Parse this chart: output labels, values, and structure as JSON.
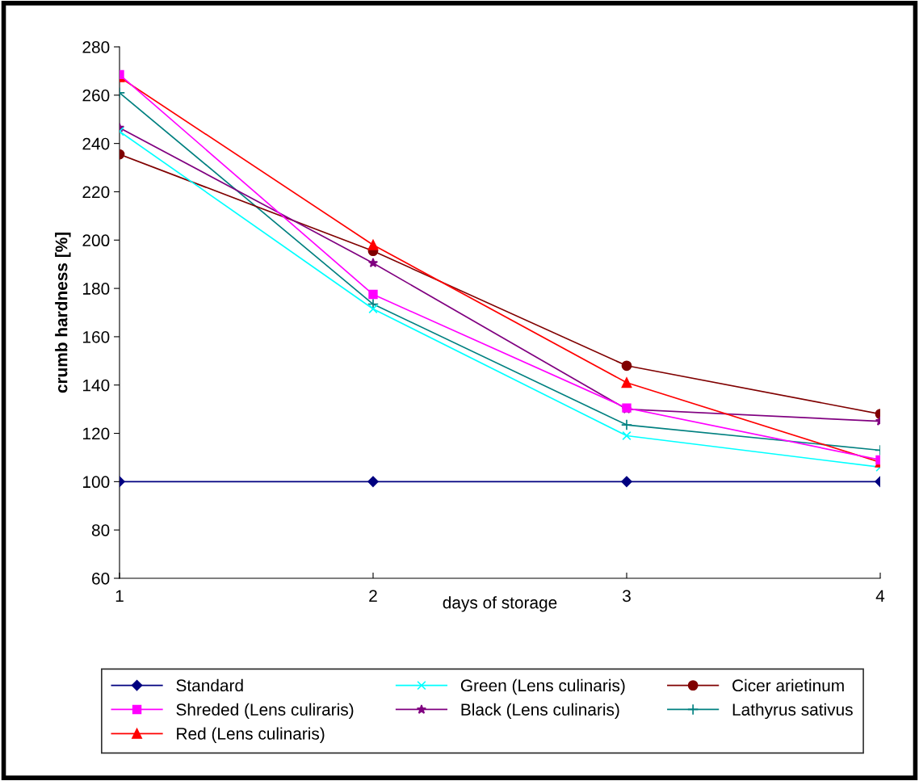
{
  "chart_data": {
    "type": "line",
    "xlabel": "days of storage",
    "ylabel": "crumb hardness [%]",
    "x": [
      1,
      2,
      3,
      4
    ],
    "xlim": [
      1,
      4
    ],
    "xticks": [
      1,
      2,
      3,
      4
    ],
    "ylim": [
      60,
      280
    ],
    "yticks": [
      60,
      80,
      100,
      120,
      140,
      160,
      180,
      200,
      220,
      240,
      260,
      280
    ],
    "grid": false,
    "legend": "bottom",
    "line_style": "solid",
    "series": [
      {
        "name": "Standard",
        "color": "#000080",
        "marker": "diamond",
        "values": [
          100,
          100,
          100,
          100
        ]
      },
      {
        "name": "Shreded (Lens culiraris)",
        "color": "#ff00ff",
        "marker": "square",
        "values": [
          268.5,
          177.5,
          130.5,
          109
        ]
      },
      {
        "name": "Red (Lens culinaris)",
        "color": "#ff0000",
        "marker": "triangle",
        "values": [
          267.5,
          198,
          141,
          108
        ]
      },
      {
        "name": "Green (Lens culinaris)",
        "color": "#00ffff",
        "marker": "x",
        "values": [
          245,
          171.5,
          119,
          106
        ]
      },
      {
        "name": "Black (Lens culinaris)",
        "color": "#800080",
        "marker": "star",
        "values": [
          246.5,
          190.5,
          130,
          125
        ]
      },
      {
        "name": "Cicer arietinum",
        "color": "#800000",
        "marker": "circle",
        "values": [
          235.5,
          195.5,
          148,
          128
        ]
      },
      {
        "name": "Lathyrus sativus",
        "color": "#008080",
        "marker": "plus",
        "values": [
          261,
          173.5,
          123.5,
          113
        ]
      }
    ]
  }
}
